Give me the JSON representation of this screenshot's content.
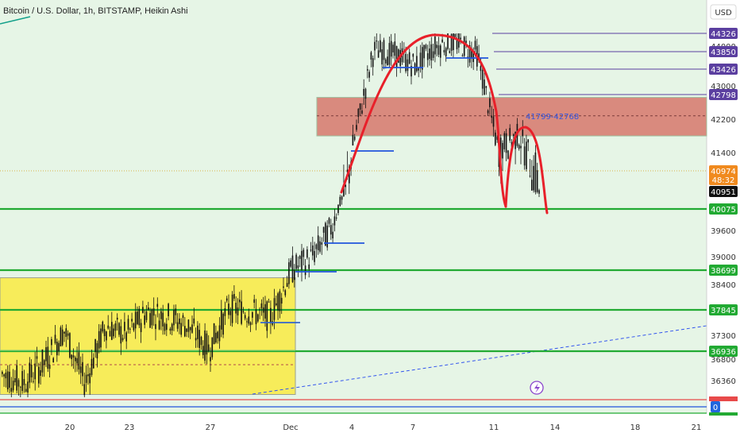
{
  "header": {
    "title": "Bitcoin / U.S. Dollar, 1h, BITSTAMP, Heikin Ashi"
  },
  "currency_label": "USD",
  "colors": {
    "background": "#e6f5e6",
    "candle": "#111111",
    "hline_green": "#22aa33",
    "hline_purple": "#5b3fa0",
    "resistance_zone": "#d98a7e",
    "support_zone": "#f7ec5a",
    "curve_red": "#e8202a",
    "level_blue": "#2255dd",
    "price_badge": "#f08a1e",
    "trendline_blue": "#3355ee"
  },
  "zone_label": "41799-42768",
  "current_price": {
    "price": "40974",
    "countdown": "48:32",
    "secondary": "40951"
  },
  "price_tags": [
    {
      "label": "44326",
      "value": 44326,
      "type": "purple"
    },
    {
      "label": "43850",
      "value": 43850,
      "type": "purple"
    },
    {
      "label": "43426",
      "value": 43426,
      "type": "purple"
    },
    {
      "label": "42798",
      "value": 42798,
      "type": "purple"
    },
    {
      "label": "40075",
      "value": 40075,
      "type": "green"
    },
    {
      "label": "38699",
      "value": 38699,
      "type": "green"
    },
    {
      "label": "37845",
      "value": 37845,
      "type": "green"
    },
    {
      "label": "36936",
      "value": 36936,
      "type": "green"
    }
  ],
  "volume_badge": "0",
  "chart_data": {
    "type": "candlestick",
    "title": "Bitcoin / U.S. Dollar, 1h, BITSTAMP, Heikin Ashi",
    "y_ticks": [
      44000,
      43000,
      42200,
      41400,
      39600,
      39000,
      38400,
      37300,
      36800,
      36360
    ],
    "y_tick_labels": [
      "44000",
      "43000",
      "42200",
      "41400",
      "39600",
      "39000",
      "38400",
      "37300",
      "36800",
      "36360"
    ],
    "x_ticks": [
      "20",
      "23",
      "27",
      "Dec",
      "4",
      "7",
      "11",
      "14",
      "18",
      "21"
    ],
    "horizontal_levels": [
      40075,
      38699,
      37845,
      36936
    ],
    "resistance_zone": [
      41799,
      42768
    ],
    "support_zone": [
      36060,
      38540
    ],
    "price_path": [
      {
        "x": "Nov 17",
        "y": 36500
      },
      {
        "x": "Nov 18",
        "y": 36300
      },
      {
        "x": "Nov 19",
        "y": 36700
      },
      {
        "x": "Nov 20",
        "y": 37400
      },
      {
        "x": "Nov 21",
        "y": 36300
      },
      {
        "x": "Nov 22",
        "y": 37500
      },
      {
        "x": "Nov 23",
        "y": 37300
      },
      {
        "x": "Nov 24",
        "y": 37800
      },
      {
        "x": "Nov 25",
        "y": 37700
      },
      {
        "x": "Nov 26",
        "y": 37500
      },
      {
        "x": "Nov 27",
        "y": 37000
      },
      {
        "x": "Nov 28",
        "y": 37900
      },
      {
        "x": "Nov 29",
        "y": 37800
      },
      {
        "x": "Nov 30",
        "y": 37700
      },
      {
        "x": "Dec 1",
        "y": 38700
      },
      {
        "x": "Dec 2",
        "y": 39000
      },
      {
        "x": "Dec 3",
        "y": 39700
      },
      {
        "x": "Dec 4",
        "y": 41600
      },
      {
        "x": "Dec 5",
        "y": 43900
      },
      {
        "x": "Dec 6",
        "y": 43800
      },
      {
        "x": "Dec 7",
        "y": 43500
      },
      {
        "x": "Dec 8",
        "y": 44000
      },
      {
        "x": "Dec 9",
        "y": 44100
      },
      {
        "x": "Dec 10",
        "y": 43800
      },
      {
        "x": "Dec 11",
        "y": 41500
      },
      {
        "x": "Dec 12",
        "y": 41800
      },
      {
        "x": "Dec 13",
        "y": 40974
      }
    ]
  }
}
